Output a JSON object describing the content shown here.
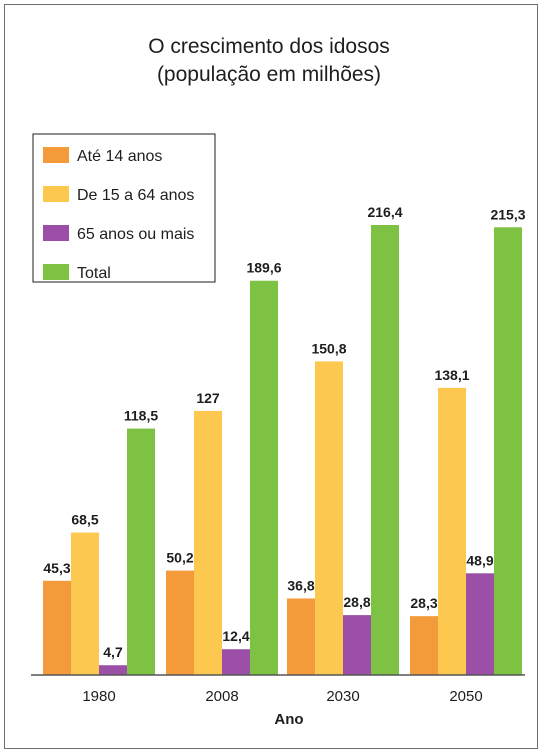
{
  "chart_data": {
    "type": "bar",
    "title": "O crescimento dos idosos",
    "subtitle": "(população em milhões)",
    "xlabel": "Ano",
    "ylabel": "",
    "categories": [
      "1980",
      "2008",
      "2030",
      "2050"
    ],
    "ylim": [
      0,
      230
    ],
    "grid": false,
    "legend_position": "top-left",
    "series": [
      {
        "name": "Até 14 anos",
        "color": "#f39a3a",
        "values": [
          45.3,
          50.2,
          36.8,
          28.3
        ],
        "labels": [
          "45,3",
          "50,2",
          "36,8",
          "28,3"
        ]
      },
      {
        "name": "De 15 a 64 anos",
        "color": "#fdc84f",
        "values": [
          68.5,
          127,
          150.8,
          138.1
        ],
        "labels": [
          "68,5",
          "127",
          "150,8",
          "138,1"
        ]
      },
      {
        "name": "65 anos ou mais",
        "color": "#9b4fa7",
        "values": [
          4.7,
          12.4,
          28.8,
          48.9
        ],
        "labels": [
          "4,7",
          "12,4",
          "28,8",
          "48,9"
        ]
      },
      {
        "name": "Total",
        "color": "#7dc243",
        "values": [
          118.5,
          189.6,
          216.4,
          215.3
        ],
        "labels": [
          "118,5",
          "189,6",
          "216,4",
          "215,3"
        ]
      }
    ]
  }
}
